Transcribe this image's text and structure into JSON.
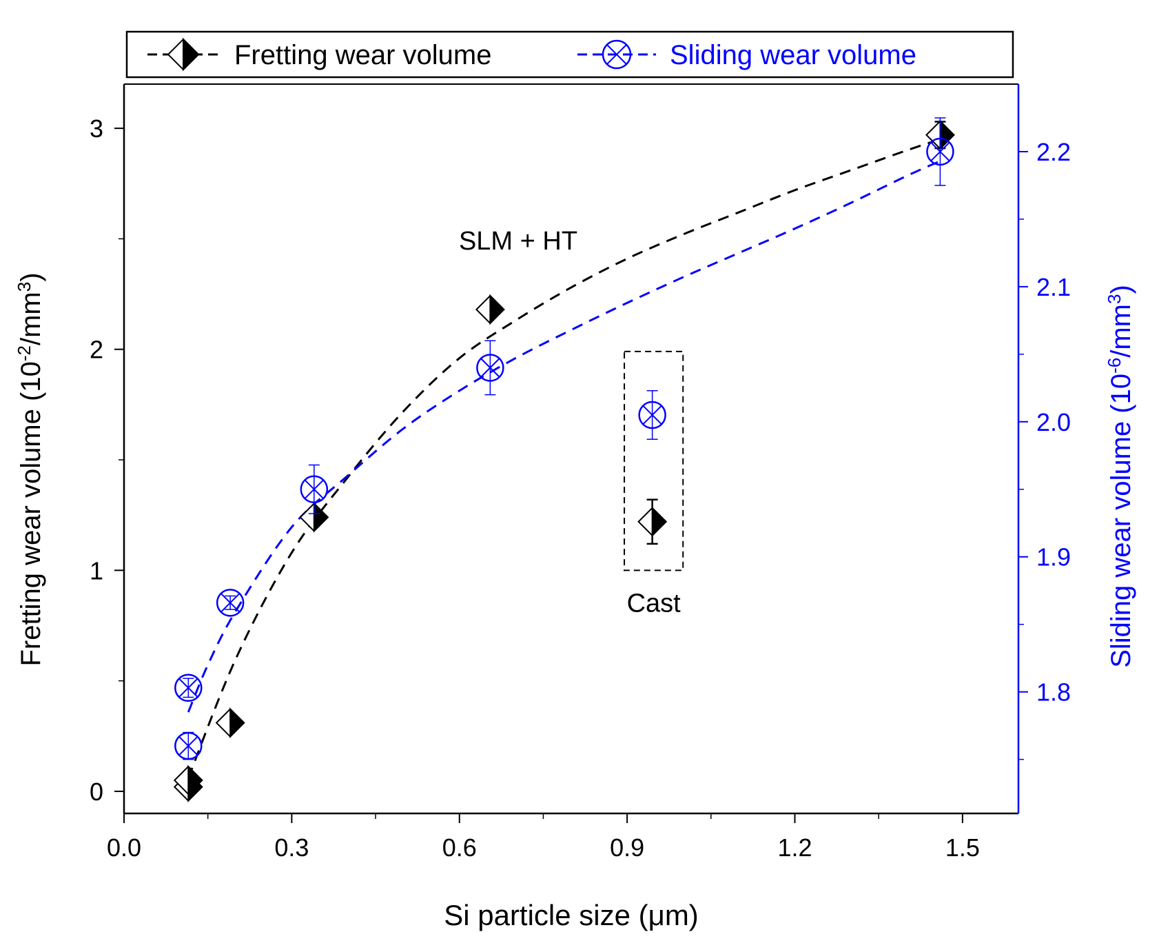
{
  "chart_data": {
    "type": "scatter",
    "title": "",
    "xlabel": "Si particle size (μm)",
    "xlim": [
      0.0,
      1.6
    ],
    "xticks": [
      "0.0",
      "0.3",
      "0.6",
      "0.9",
      "1.2",
      "1.5"
    ],
    "y_left": {
      "label_main": "Fretting wear volume (10",
      "label_exp1": "-2",
      "label_mid": "/mm",
      "label_exp2": "3",
      "label_end": ")",
      "lim": [
        -0.1,
        3.2
      ],
      "ticks": [
        "0",
        "1",
        "2",
        "3"
      ],
      "color": "#000000"
    },
    "y_right": {
      "label_main": "Sliding wear volume (10",
      "label_exp1": "-6",
      "label_mid": "/mm",
      "label_exp2": "3",
      "label_end": ")",
      "lim": [
        1.71,
        2.25
      ],
      "ticks": [
        "1.8",
        "1.9",
        "2.0",
        "2.1",
        "2.2"
      ],
      "color": "#0000ff"
    },
    "legend": {
      "placement": "top",
      "fretting_label": "Fretting wear volume",
      "sliding_label": "Sliding wear volume"
    },
    "series": [
      {
        "name": "Fretting wear volume",
        "axis": "left",
        "color": "#000000",
        "marker": "half-filled-diamond",
        "points": [
          {
            "x": 0.115,
            "y": 0.02,
            "err": 0.03
          },
          {
            "x": 0.115,
            "y": 0.05,
            "err": 0.03
          },
          {
            "x": 0.19,
            "y": 0.31,
            "err": 0.02
          },
          {
            "x": 0.34,
            "y": 1.24,
            "err": 0.04
          },
          {
            "x": 0.655,
            "y": 2.18,
            "err": 0.03
          },
          {
            "x": 1.46,
            "y": 2.97,
            "err": 0.06
          }
        ],
        "fit_curve": {
          "x": [
            0.115,
            0.2,
            0.3,
            0.4,
            0.5,
            0.6,
            0.7,
            0.8,
            0.9,
            1.0,
            1.1,
            1.2,
            1.3,
            1.4,
            1.46
          ],
          "y": [
            0.06,
            0.6,
            1.08,
            1.42,
            1.72,
            1.96,
            2.13,
            2.28,
            2.41,
            2.52,
            2.62,
            2.72,
            2.81,
            2.9,
            2.95
          ]
        }
      },
      {
        "name": "Sliding wear volume",
        "axis": "right",
        "color": "#0000ff",
        "marker": "circle-x",
        "points": [
          {
            "x": 0.115,
            "y": 1.76,
            "err": 0.01
          },
          {
            "x": 0.115,
            "y": 1.803,
            "err": 0.007
          },
          {
            "x": 0.19,
            "y": 1.866,
            "err": 0.005
          },
          {
            "x": 0.34,
            "y": 1.95,
            "err": 0.018
          },
          {
            "x": 0.655,
            "y": 2.04,
            "err": 0.02
          },
          {
            "x": 1.46,
            "y": 2.2,
            "err": 0.025
          }
        ],
        "fit_curve": {
          "x": [
            0.115,
            0.15,
            0.2,
            0.3,
            0.4,
            0.5,
            0.6,
            0.7,
            0.8,
            0.9,
            1.0,
            1.1,
            1.2,
            1.3,
            1.4,
            1.46
          ],
          "y": [
            1.785,
            1.82,
            1.86,
            1.922,
            1.96,
            1.995,
            2.023,
            2.047,
            2.068,
            2.088,
            2.107,
            2.125,
            2.143,
            2.162,
            2.182,
            2.193
          ]
        }
      },
      {
        "name": "Cast - Fretting wear volume",
        "axis": "left",
        "color": "#000000",
        "marker": "half-filled-diamond",
        "points": [
          {
            "x": 0.945,
            "y": 1.22,
            "err": 0.1
          }
        ]
      },
      {
        "name": "Cast - Sliding wear volume",
        "axis": "right",
        "color": "#0000ff",
        "marker": "circle-x",
        "points": [
          {
            "x": 0.945,
            "y": 2.005,
            "err": 0.018
          }
        ]
      }
    ],
    "annotations": {
      "slm": "SLM + HT",
      "cast": "Cast"
    }
  }
}
